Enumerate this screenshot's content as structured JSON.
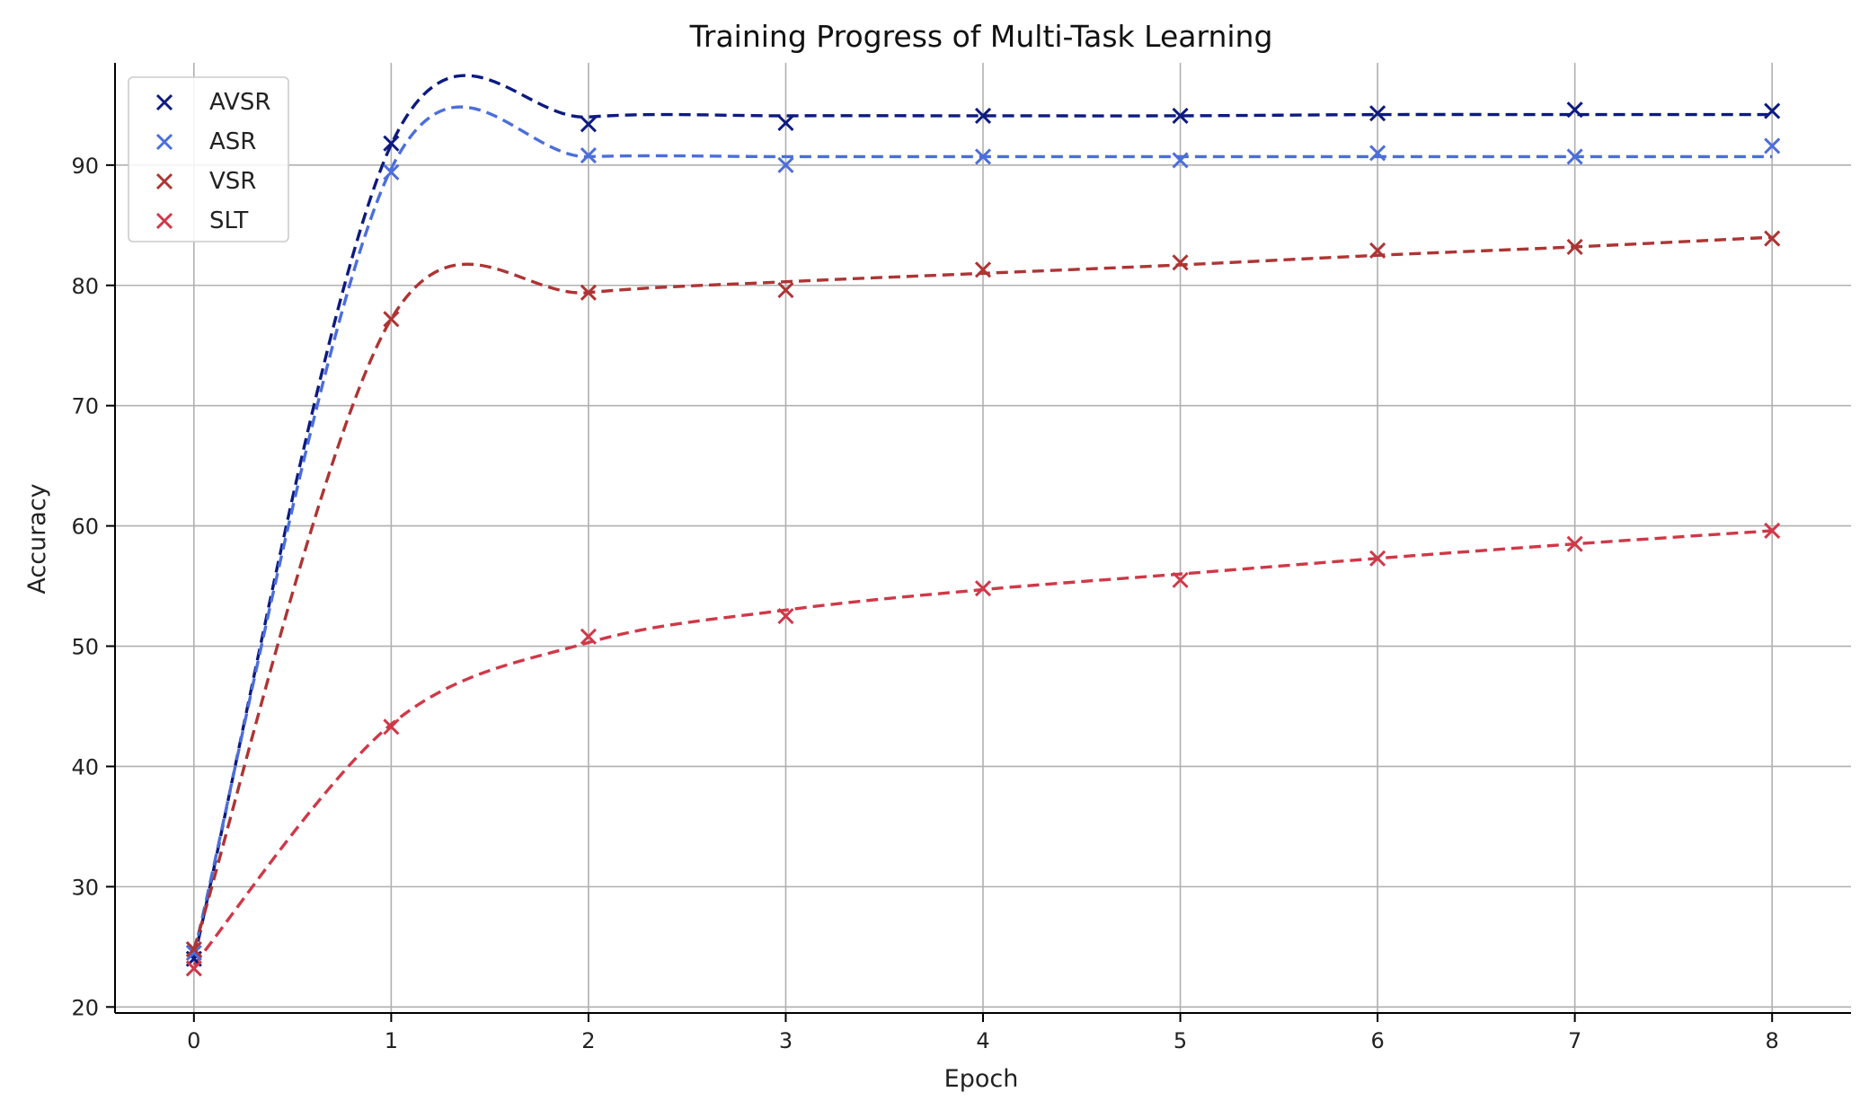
{
  "chart_data": {
    "type": "line",
    "title": "Training Progress of Multi-Task Learning",
    "xlabel": "Epoch",
    "ylabel": "Accuracy",
    "x": [
      0,
      1,
      2,
      3,
      4,
      5,
      6,
      7,
      8
    ],
    "xlim": [
      -0.4,
      8.4
    ],
    "ylim": [
      19.5,
      98.5
    ],
    "xticks": [
      0,
      1,
      2,
      3,
      4,
      5,
      6,
      7,
      8
    ],
    "yticks": [
      20,
      30,
      40,
      50,
      60,
      70,
      80,
      90
    ],
    "grid": true,
    "legend_position": "top-left",
    "series": [
      {
        "name": "AVSR",
        "color": "#0d1a80",
        "marker": "x",
        "values": [
          24.0,
          91.8,
          93.4,
          93.5,
          94.1,
          94.1,
          94.3,
          94.6,
          94.5
        ],
        "fit": [
          24.0,
          91.7,
          94.0,
          94.1,
          94.1,
          94.1,
          94.2,
          94.2,
          94.2
        ]
      },
      {
        "name": "ASR",
        "color": "#4c6edb",
        "marker": "x",
        "values": [
          24.5,
          89.4,
          90.8,
          90.0,
          90.7,
          90.4,
          91.0,
          90.7,
          91.6
        ],
        "fit": [
          24.5,
          89.7,
          90.7,
          90.7,
          90.7,
          90.7,
          90.7,
          90.7,
          90.7
        ]
      },
      {
        "name": "VSR",
        "color": "#ad3534",
        "marker": "x",
        "values": [
          24.8,
          77.2,
          79.4,
          79.6,
          81.3,
          81.9,
          82.9,
          83.2,
          83.9
        ],
        "fit": [
          24.8,
          77.2,
          79.4,
          80.3,
          81.0,
          81.7,
          82.5,
          83.2,
          84.0
        ]
      },
      {
        "name": "SLT",
        "color": "#d03848",
        "marker": "x",
        "values": [
          23.2,
          43.3,
          50.8,
          52.5,
          54.8,
          55.5,
          57.3,
          58.5,
          59.6
        ],
        "fit": [
          23.5,
          43.5,
          50.3,
          53.0,
          54.7,
          56.0,
          57.3,
          58.5,
          59.6
        ]
      }
    ]
  }
}
